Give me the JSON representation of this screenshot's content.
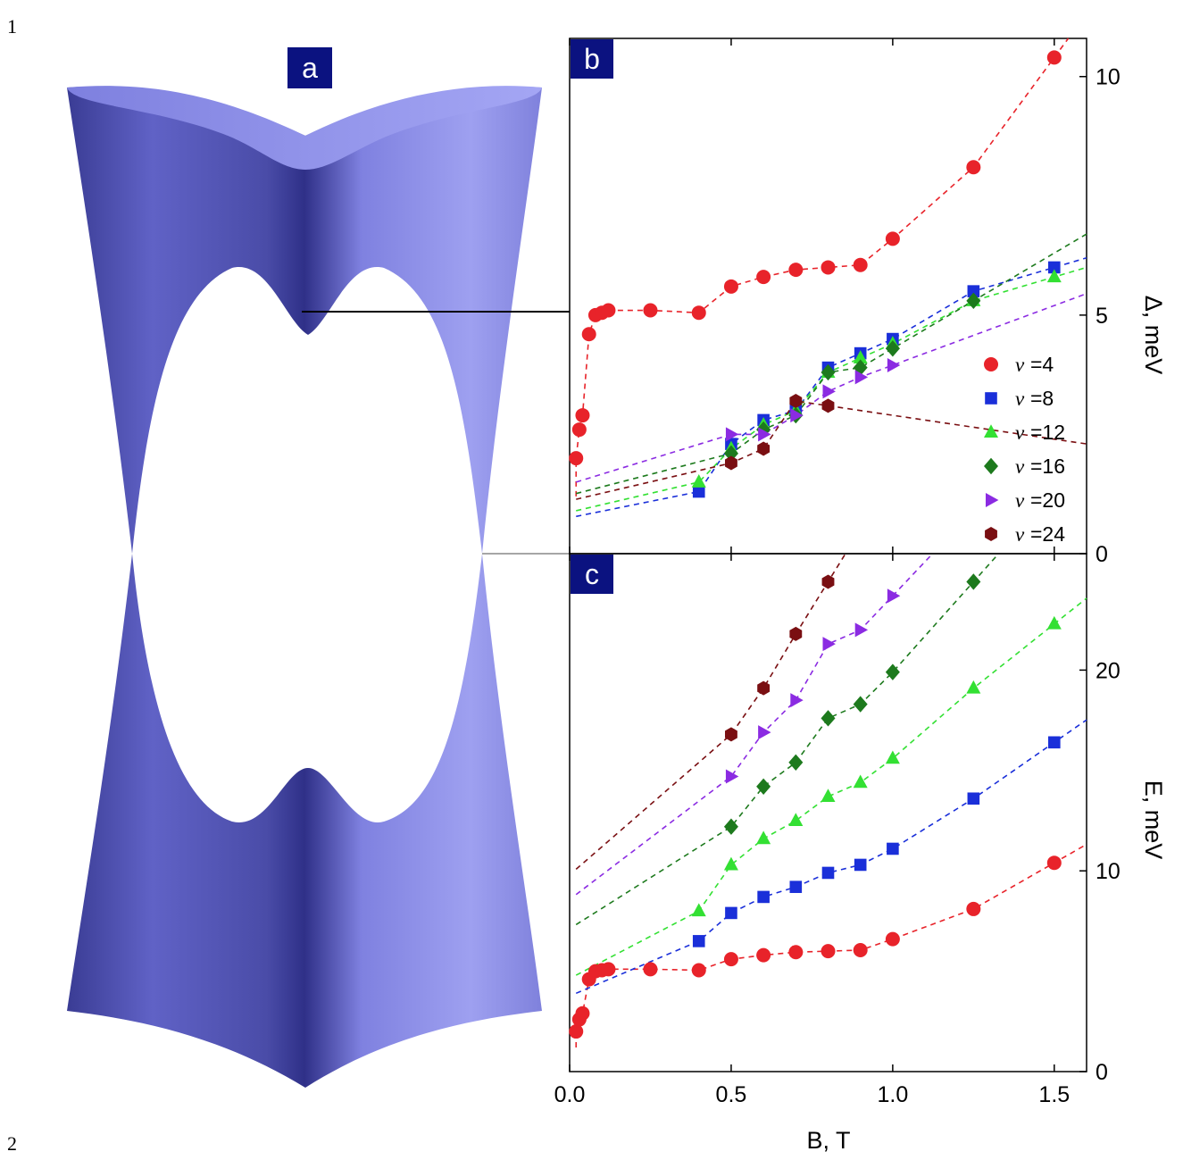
{
  "page_numbers": [
    "1",
    "2"
  ],
  "panels": {
    "a": "a",
    "b": "b",
    "c": "c"
  },
  "colors": {
    "surface": "#8c8ee8",
    "surface_dark": "#3e3f93",
    "label_bg": "#0b1280",
    "nu4": "#e8232a",
    "nu8": "#1a2fd9",
    "nu12": "#33e033",
    "nu16": "#1d7a1d",
    "nu20": "#8b2be2",
    "nu24": "#7a0f12"
  },
  "chart_data": [
    {
      "panel": "b",
      "type": "scatter",
      "xlabel": "B, T",
      "ylabel": "Δ, meV",
      "xlim": [
        0,
        1.6
      ],
      "ylim": [
        0,
        10.8
      ],
      "x_ticks": [
        "0.0",
        "0.5",
        "1.0",
        "1.5"
      ],
      "y_ticks": [
        "0",
        "5",
        "10"
      ],
      "legend_position": "lower-right",
      "series": [
        {
          "name": "ν =4",
          "nu": "ν",
          "label": "=4",
          "marker": "circle",
          "color": "#e8232a",
          "x": [
            0.02,
            0.03,
            0.04,
            0.06,
            0.08,
            0.1,
            0.12,
            0.25,
            0.4,
            0.5,
            0.6,
            0.7,
            0.8,
            0.9,
            1.0,
            1.25,
            1.5
          ],
          "y": [
            2.0,
            2.6,
            2.9,
            4.6,
            5.0,
            5.05,
            5.1,
            5.1,
            5.05,
            5.6,
            5.8,
            5.95,
            6.0,
            6.05,
            6.6,
            8.1,
            10.4
          ]
        },
        {
          "name": "ν =8",
          "nu": "ν",
          "label": "=8",
          "marker": "square",
          "color": "#1a2fd9",
          "x": [
            0.4,
            0.5,
            0.6,
            0.7,
            0.8,
            0.9,
            1.0,
            1.25,
            1.5
          ],
          "y": [
            1.3,
            2.3,
            2.8,
            3.0,
            3.9,
            4.2,
            4.5,
            5.5,
            6.0
          ]
        },
        {
          "name": "ν =12",
          "nu": "ν",
          "label": "=12",
          "marker": "triangle-up",
          "color": "#33e033",
          "x": [
            0.4,
            0.5,
            0.6,
            0.7,
            0.8,
            0.9,
            1.0,
            1.25,
            1.5
          ],
          "y": [
            1.5,
            2.2,
            2.7,
            3.0,
            3.8,
            4.1,
            4.4,
            5.3,
            5.8
          ]
        },
        {
          "name": "ν =16",
          "nu": "ν",
          "label": "=16",
          "marker": "diamond",
          "color": "#1d7a1d",
          "x": [
            0.5,
            0.6,
            0.7,
            0.8,
            0.9,
            1.0,
            1.25
          ],
          "y": [
            2.1,
            2.6,
            2.9,
            3.8,
            3.9,
            4.3,
            5.3
          ]
        },
        {
          "name": "ν =20",
          "nu": "ν",
          "label": "=20",
          "marker": "triangle-right",
          "color": "#8b2be2",
          "x": [
            0.5,
            0.6,
            0.7,
            0.8,
            0.9,
            1.0
          ],
          "y": [
            2.5,
            2.5,
            2.9,
            3.4,
            3.7,
            3.95
          ]
        },
        {
          "name": "ν =24",
          "nu": "ν",
          "label": "=24",
          "marker": "hexagon",
          "color": "#7a0f12",
          "x": [
            0.5,
            0.6,
            0.7,
            0.8
          ],
          "y": [
            1.9,
            2.2,
            3.2,
            3.1
          ]
        }
      ]
    },
    {
      "panel": "c",
      "type": "scatter",
      "xlabel": "B, T",
      "ylabel": "E, meV",
      "xlim": [
        0,
        1.6
      ],
      "ylim": [
        0,
        25.8
      ],
      "x_ticks": [
        "0.0",
        "0.5",
        "1.0",
        "1.5"
      ],
      "y_ticks": [
        "0",
        "10",
        "20"
      ],
      "series": [
        {
          "name": "ν =4",
          "marker": "circle",
          "color": "#e8232a",
          "x": [
            0.02,
            0.03,
            0.04,
            0.06,
            0.08,
            0.1,
            0.12,
            0.25,
            0.4,
            0.5,
            0.6,
            0.7,
            0.8,
            0.9,
            1.0,
            1.25,
            1.5
          ],
          "y": [
            2.0,
            2.6,
            2.9,
            4.6,
            5.0,
            5.05,
            5.1,
            5.1,
            5.05,
            5.6,
            5.8,
            5.95,
            6.0,
            6.05,
            6.6,
            8.1,
            10.4
          ]
        },
        {
          "name": "ν =8",
          "marker": "square",
          "color": "#1a2fd9",
          "x": [
            0.4,
            0.5,
            0.6,
            0.7,
            0.8,
            0.9,
            1.0,
            1.25,
            1.5
          ],
          "y": [
            6.5,
            7.9,
            8.7,
            9.2,
            9.9,
            10.3,
            11.1,
            13.6,
            16.4
          ]
        },
        {
          "name": "ν =12",
          "marker": "triangle-up",
          "color": "#33e033",
          "x": [
            0.4,
            0.5,
            0.6,
            0.7,
            0.8,
            0.9,
            1.0,
            1.25,
            1.5
          ],
          "y": [
            8.0,
            10.3,
            11.6,
            12.5,
            13.7,
            14.4,
            15.6,
            19.1,
            22.3
          ]
        },
        {
          "name": "ν =16",
          "marker": "diamond",
          "color": "#1d7a1d",
          "x": [
            0.5,
            0.6,
            0.7,
            0.8,
            0.9,
            1.0,
            1.25
          ],
          "y": [
            12.2,
            14.2,
            15.4,
            17.6,
            18.3,
            19.9,
            24.4
          ]
        },
        {
          "name": "ν =20",
          "marker": "triangle-right",
          "color": "#8b2be2",
          "x": [
            0.5,
            0.6,
            0.7,
            0.8,
            0.9,
            1.0
          ],
          "y": [
            14.7,
            16.9,
            18.5,
            21.3,
            22.0,
            23.7
          ]
        },
        {
          "name": "ν =24",
          "marker": "hexagon",
          "color": "#7a0f12",
          "x": [
            0.5,
            0.6,
            0.7,
            0.8
          ],
          "y": [
            16.8,
            19.1,
            21.8,
            24.4
          ]
        }
      ]
    }
  ]
}
